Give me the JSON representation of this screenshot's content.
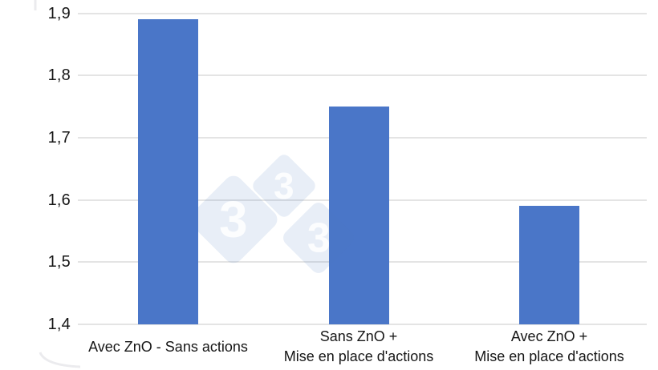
{
  "chart_data": {
    "type": "bar",
    "title": "",
    "xlabel": "",
    "ylabel": "",
    "categories": [
      "Avec ZnO - Sans actions",
      "Sans ZnO +\nMise en place d'actions",
      "Avec ZnO +\nMise en place d'actions"
    ],
    "values": [
      1.89,
      1.75,
      1.59
    ],
    "ylim": [
      1.4,
      1.9
    ],
    "yticks": {
      "values": [
        1.9,
        1.8,
        1.7,
        1.6,
        1.5,
        1.4
      ],
      "labels": [
        "1,9",
        "1,8",
        "1,7",
        "1,6",
        "1,5",
        "1,4"
      ]
    },
    "decimal_separator": ",",
    "grid": true,
    "legend_position": "none",
    "bar_color": "#4a76c8",
    "gridline_color": "#e4e4e4",
    "text_color": "#161616"
  },
  "watermark": {
    "name": "333",
    "glyph": "3",
    "diamond_color": "rgba(80, 120, 190, 0.13)",
    "glyph_color": "rgba(255, 255, 255, 0.85)"
  }
}
